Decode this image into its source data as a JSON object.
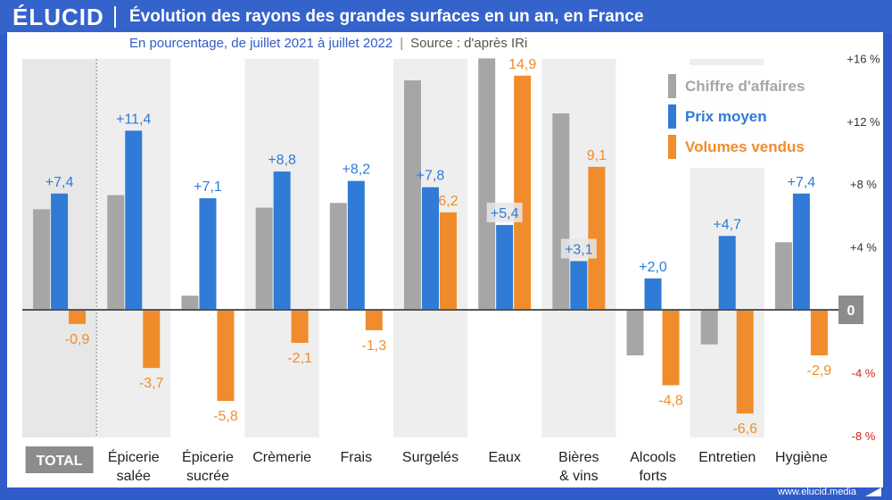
{
  "brand": "ÉLUCID",
  "title": "Évolution des rayons des grandes surfaces en un an, en France",
  "subtitle": "En pourcentage, de juillet 2021 à juillet 2022",
  "source": "Source : d'après IRi",
  "footer": "www.elucid.media",
  "colors": {
    "ca": "#a6a6a6",
    "prix": "#2f7bd6",
    "volumes": "#f08c2c",
    "negative_tick": "#d0201a",
    "accent": "#2f5cc8"
  },
  "chart_data": {
    "type": "bar",
    "categories": [
      "TOTAL",
      "Épicerie salée",
      "Épicerie sucrée",
      "Crèmerie",
      "Frais",
      "Surgelés",
      "Eaux",
      "Bières & vins",
      "Alcools forts",
      "Entretien",
      "Hygiène"
    ],
    "category_lines": [
      [
        "TOTAL"
      ],
      [
        "Épicerie",
        "salée"
      ],
      [
        "Épicerie",
        "sucrée"
      ],
      [
        "Crèmerie"
      ],
      [
        "Frais"
      ],
      [
        "Surgelés"
      ],
      [
        "Eaux"
      ],
      [
        "Bières",
        "& vins"
      ],
      [
        "Alcools",
        "forts"
      ],
      [
        "Entretien"
      ],
      [
        "Hygiène"
      ]
    ],
    "series": [
      {
        "name": "Chiffre d'affaires",
        "values": [
          6.4,
          7.3,
          0.9,
          6.5,
          6.8,
          14.6,
          16.0,
          12.5,
          -2.9,
          -2.2,
          4.3
        ],
        "labels": [
          "",
          "",
          "",
          "",
          "",
          "",
          "",
          "",
          "",
          "",
          ""
        ]
      },
      {
        "name": "Prix moyen",
        "values": [
          7.4,
          11.4,
          7.1,
          8.8,
          8.2,
          7.8,
          5.4,
          3.1,
          2.0,
          4.7,
          7.4
        ],
        "labels": [
          "+7,4",
          "+11,4",
          "+7,1",
          "+8,8",
          "+8,2",
          "+7,8",
          "+5,4",
          "+3,1",
          "+2,0",
          "+4,7",
          "+7,4"
        ]
      },
      {
        "name": "Volumes vendus",
        "values": [
          -0.9,
          -3.7,
          -5.8,
          -2.1,
          -1.3,
          6.2,
          14.9,
          9.1,
          -4.8,
          -6.6,
          -2.9
        ],
        "labels": [
          "-0,9",
          "-3,7",
          "-5,8",
          "-2,1",
          "-1,3",
          "6,2",
          "14,9",
          "9,1",
          "-4,8",
          "-6,6",
          "-2,9"
        ]
      }
    ],
    "yticks": [
      {
        "v": 16,
        "label": "+16 %"
      },
      {
        "v": 12,
        "label": "+12 %"
      },
      {
        "v": 8,
        "label": "+8 %"
      },
      {
        "v": 4,
        "label": "+4 %"
      },
      {
        "v": 0,
        "label": "0"
      },
      {
        "v": -4,
        "label": "-4 %"
      },
      {
        "v": -8,
        "label": "-8 %"
      }
    ],
    "ylim": [
      -8,
      16
    ],
    "legend_position": "top-right",
    "grid": false
  }
}
